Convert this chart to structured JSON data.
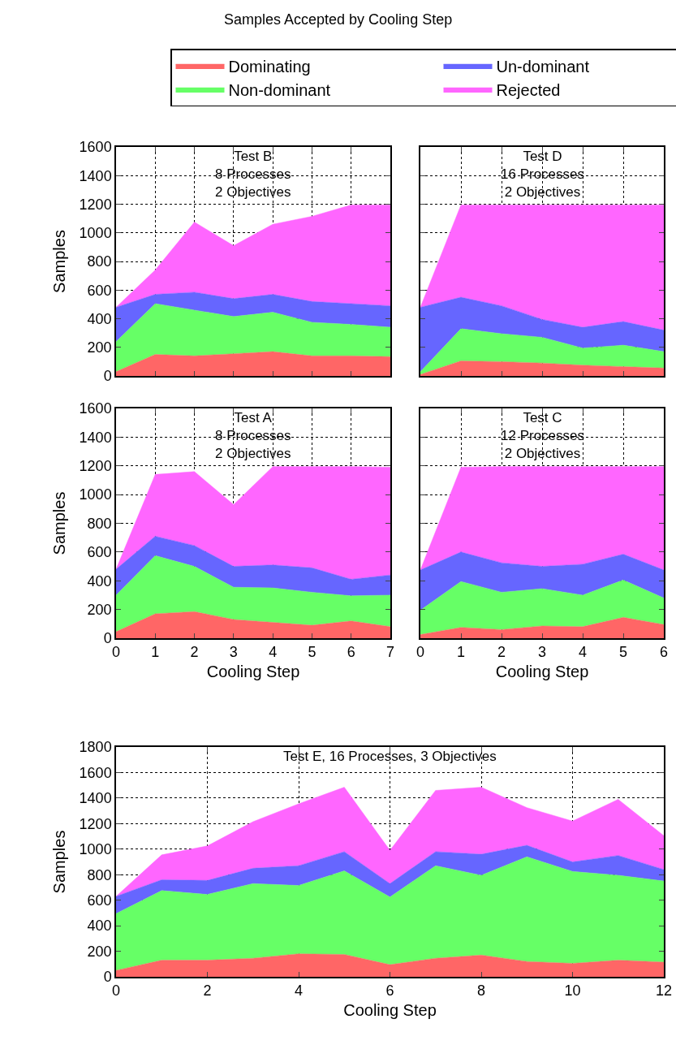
{
  "chart_data": [
    {
      "type": "area",
      "title": "Test B\n8 Processes\n2 Objectives",
      "annotations": [
        "Samples Accepted by Cooling Step"
      ],
      "ylabel": "Samples",
      "x": [
        0,
        1,
        2,
        3,
        4,
        5,
        6,
        7
      ],
      "stacked": true,
      "xlim": [
        0,
        7
      ],
      "ylim": [
        0,
        1600
      ],
      "xticks": [
        0,
        1,
        2,
        3,
        4,
        5,
        6,
        7
      ],
      "yticks": [
        0,
        200,
        400,
        600,
        800,
        1000,
        1200,
        1400,
        1600
      ],
      "grid": true,
      "legend": "top",
      "tick_labels": "y",
      "series": [
        {
          "name": "Dominating",
          "color": "#ff6666",
          "values": [
            30,
            150,
            140,
            155,
            170,
            140,
            140,
            135
          ]
        },
        {
          "name": "Non-dominant",
          "color": "#66ff66",
          "values": [
            210,
            355,
            320,
            260,
            275,
            235,
            220,
            205
          ]
        },
        {
          "name": "Un-dominant",
          "color": "#6666ff",
          "values": [
            240,
            65,
            125,
            125,
            125,
            145,
            145,
            150
          ]
        },
        {
          "name": "Rejected",
          "color": "#ff66ff",
          "values": [
            0,
            170,
            490,
            370,
            490,
            595,
            690,
            705
          ]
        }
      ]
    },
    {
      "type": "area",
      "title": "Test D\n16 Processes\n2 Objectives",
      "x": [
        0,
        1,
        2,
        3,
        4,
        5,
        6
      ],
      "stacked": true,
      "xlim": [
        0,
        6
      ],
      "ylim": [
        0,
        1600
      ],
      "xticks": [
        0,
        1,
        2,
        3,
        4,
        5,
        6
      ],
      "yticks": [
        0,
        200,
        400,
        600,
        800,
        1000,
        1200,
        1400,
        1600
      ],
      "grid": true,
      "tick_labels": false,
      "series": [
        {
          "color": "#ff6666",
          "values": [
            10,
            105,
            100,
            90,
            75,
            65,
            55
          ]
        },
        {
          "color": "#66ff66",
          "values": [
            20,
            225,
            195,
            180,
            120,
            150,
            115
          ]
        },
        {
          "color": "#6666ff",
          "values": [
            450,
            220,
            195,
            125,
            145,
            165,
            150
          ]
        },
        {
          "color": "#ff66ff",
          "values": [
            0,
            645,
            705,
            800,
            855,
            815,
            875
          ]
        }
      ]
    },
    {
      "type": "area",
      "title": "Test A\n8 Processes\n2 Objectives",
      "xlabel": "Cooling Step",
      "ylabel": "Samples",
      "x": [
        0,
        1,
        2,
        3,
        4,
        5,
        6,
        7
      ],
      "stacked": true,
      "xlim": [
        0,
        7
      ],
      "ylim": [
        0,
        1600
      ],
      "xticks": [
        0,
        1,
        2,
        3,
        4,
        5,
        6,
        7
      ],
      "yticks": [
        0,
        200,
        400,
        600,
        800,
        1000,
        1200,
        1400,
        1600
      ],
      "grid": true,
      "series": [
        {
          "color": "#ff6666",
          "values": [
            45,
            170,
            185,
            130,
            110,
            90,
            120,
            80
          ]
        },
        {
          "color": "#66ff66",
          "values": [
            255,
            405,
            315,
            225,
            240,
            230,
            175,
            220
          ]
        },
        {
          "color": "#6666ff",
          "values": [
            180,
            135,
            145,
            145,
            160,
            170,
            115,
            140
          ]
        },
        {
          "color": "#ff66ff",
          "values": [
            0,
            430,
            515,
            430,
            685,
            705,
            785,
            750
          ]
        }
      ]
    },
    {
      "type": "area",
      "title": "Test C\n12 Processes\n2 Objectives",
      "xlabel": "Cooling Step",
      "x": [
        0,
        1,
        2,
        3,
        4,
        5,
        6
      ],
      "stacked": true,
      "xlim": [
        0,
        6
      ],
      "ylim": [
        0,
        1600
      ],
      "xticks": [
        0,
        1,
        2,
        3,
        4,
        5,
        6
      ],
      "yticks": [
        0,
        200,
        400,
        600,
        800,
        1000,
        1200,
        1400,
        1600
      ],
      "grid": true,
      "tick_labels": "x",
      "series": [
        {
          "color": "#ff6666",
          "values": [
            25,
            75,
            60,
            85,
            80,
            145,
            95
          ]
        },
        {
          "color": "#66ff66",
          "values": [
            170,
            320,
            260,
            260,
            220,
            260,
            185
          ]
        },
        {
          "color": "#6666ff",
          "values": [
            280,
            205,
            205,
            155,
            215,
            180,
            195
          ]
        },
        {
          "color": "#ff66ff",
          "values": [
            0,
            590,
            670,
            695,
            680,
            610,
            720
          ]
        }
      ]
    },
    {
      "type": "area",
      "title": "Test E, 16 Processes, 3 Objectives",
      "xlabel": "Cooling Step",
      "ylabel": "Samples",
      "x": [
        0,
        1,
        2,
        3,
        4,
        5,
        6,
        7,
        8,
        9,
        10,
        11,
        12
      ],
      "stacked": true,
      "xlim": [
        0,
        12
      ],
      "ylim": [
        0,
        1800
      ],
      "xticks": [
        0,
        2,
        4,
        6,
        8,
        10,
        12
      ],
      "yticks": [
        0,
        200,
        400,
        600,
        800,
        1000,
        1200,
        1400,
        1600,
        1800
      ],
      "grid": true,
      "series": [
        {
          "color": "#ff6666",
          "values": [
            50,
            130,
            130,
            145,
            180,
            175,
            95,
            145,
            170,
            120,
            105,
            130,
            115
          ]
        },
        {
          "color": "#66ff66",
          "values": [
            445,
            545,
            515,
            585,
            535,
            655,
            530,
            725,
            625,
            820,
            720,
            665,
            635
          ]
        },
        {
          "color": "#6666ff",
          "values": [
            135,
            85,
            110,
            120,
            155,
            150,
            105,
            110,
            165,
            90,
            75,
            155,
            90
          ]
        },
        {
          "color": "#ff66ff",
          "values": [
            0,
            195,
            270,
            365,
            485,
            505,
            260,
            480,
            525,
            295,
            320,
            440,
            265
          ]
        }
      ]
    }
  ]
}
